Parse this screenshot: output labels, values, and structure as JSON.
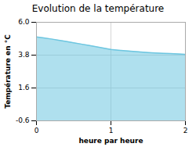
{
  "chart_data": {
    "type": "area",
    "title": "Evolution de la température",
    "xlabel": "heure par heure",
    "ylabel": "Température en °C",
    "x": [
      0.0,
      0.1,
      0.2,
      0.3,
      0.4,
      0.5,
      0.6,
      0.7,
      0.8,
      0.9,
      1.0,
      1.1,
      1.2,
      1.3,
      1.4,
      1.5,
      1.6,
      1.7,
      1.8,
      1.9,
      2.0
    ],
    "values": [
      5.02,
      4.95,
      4.88,
      4.8,
      4.72,
      4.63,
      4.54,
      4.45,
      4.36,
      4.27,
      4.18,
      4.13,
      4.09,
      4.05,
      4.01,
      3.97,
      3.94,
      3.92,
      3.9,
      3.88,
      3.85
    ],
    "color": "#6ec6e0",
    "xlim": [
      0,
      2
    ],
    "ylim": [
      -0.6,
      6.0
    ],
    "xticks": [
      0,
      1,
      2
    ],
    "yticks": [
      -0.6,
      1.6,
      3.8,
      {
        "value": 6.0,
        "label": "6.0"
      }
    ],
    "grid": true
  }
}
